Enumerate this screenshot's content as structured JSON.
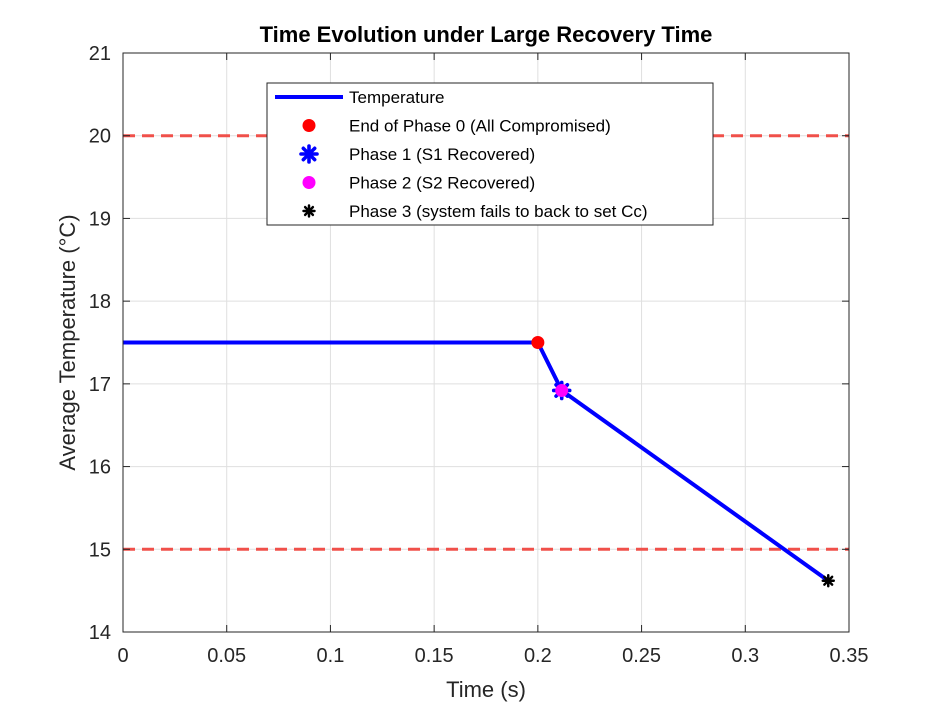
{
  "chart_data": {
    "type": "line",
    "title": "Time Evolution under Large Recovery Time",
    "xlabel": "Time (s)",
    "ylabel": "Average Temperature (°C)",
    "xlim": [
      0,
      0.35
    ],
    "ylim": [
      14,
      21
    ],
    "x_ticks": [
      0,
      0.05,
      0.1,
      0.15,
      0.2,
      0.25,
      0.3,
      0.35
    ],
    "x_tick_labels": [
      "0",
      "0.05",
      "0.1",
      "0.15",
      "0.2",
      "0.25",
      "0.3",
      "0.35"
    ],
    "y_ticks": [
      14,
      15,
      16,
      17,
      18,
      19,
      20,
      21
    ],
    "y_tick_labels": [
      "14",
      "15",
      "16",
      "17",
      "18",
      "19",
      "20",
      "21"
    ],
    "grid": true,
    "legend_position": "top-center",
    "reference_lines": [
      {
        "y": 20,
        "color": "#f0504a",
        "style": "dashed"
      },
      {
        "y": 15,
        "color": "#f0504a",
        "style": "dashed"
      }
    ],
    "series": [
      {
        "name": "Temperature",
        "color": "#0000ff",
        "x": [
          0,
          0.2,
          0.2115,
          0.34
        ],
        "y": [
          17.5,
          17.5,
          16.92,
          14.62
        ]
      }
    ],
    "markers": [
      {
        "name": "End of Phase 0 (All Compromised)",
        "x": 0.2,
        "y": 17.5,
        "color": "#ff0000",
        "symbol": "circle"
      },
      {
        "name": "Phase 1 (S1 Recovered)",
        "x": 0.2115,
        "y": 16.92,
        "color": "#0000ff",
        "symbol": "asterisk"
      },
      {
        "name": "Phase 2 (S2 Recovered)",
        "x": 0.2115,
        "y": 16.92,
        "color": "#ff00ff",
        "symbol": "circle"
      },
      {
        "name": "Phase 3 (system fails to back to set Cc)",
        "x": 0.34,
        "y": 14.62,
        "color": "#000000",
        "symbol": "asterisk"
      }
    ]
  }
}
